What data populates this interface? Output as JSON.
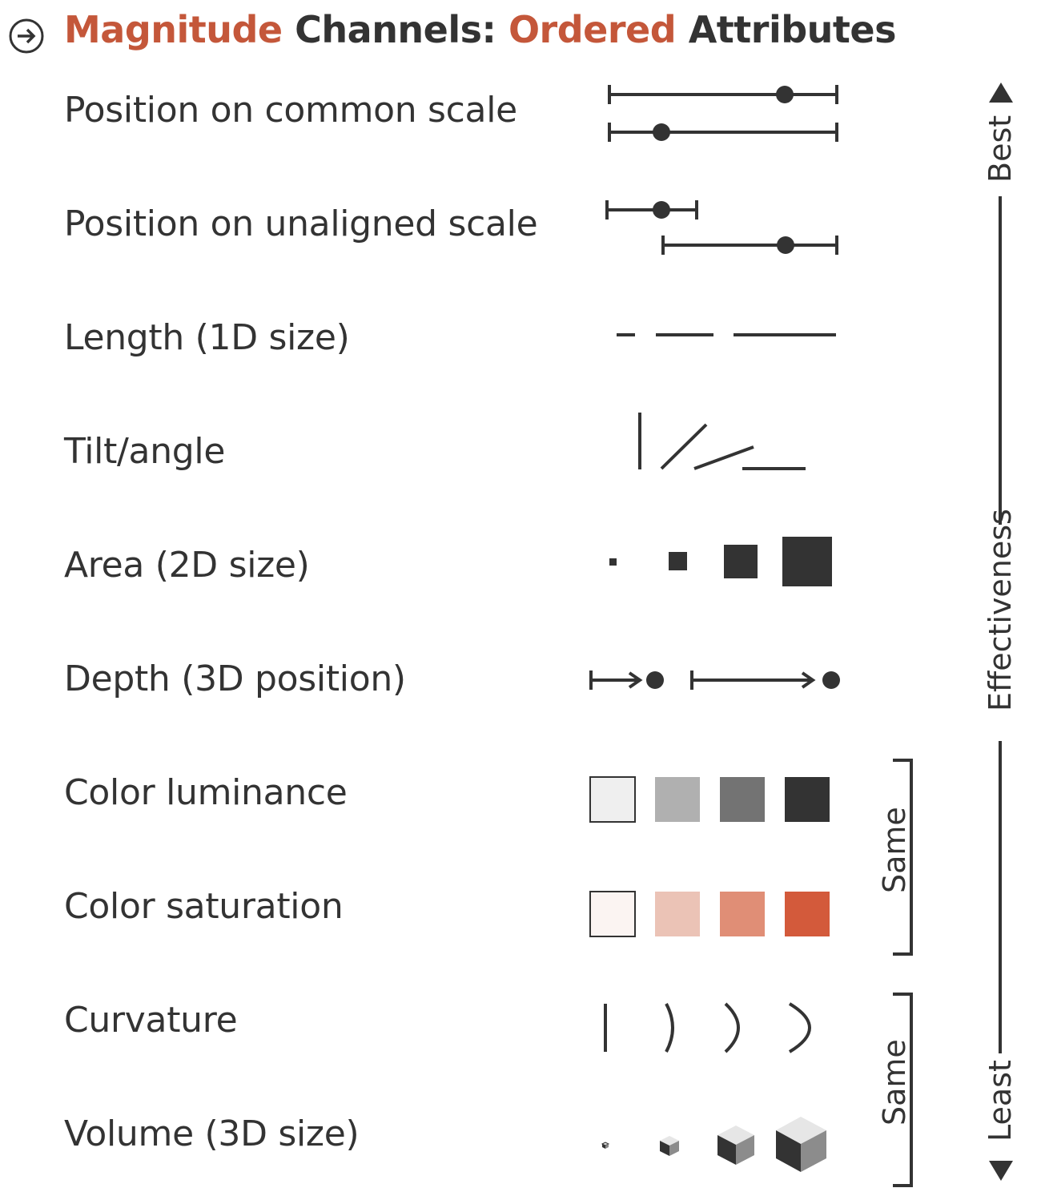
{
  "title": {
    "part1": "Magnitude",
    "part2": " Channels: ",
    "part3": "Ordered",
    "part4": " Attributes",
    "accent_color": "#c4573a",
    "icon": "arrow-right-circle-icon"
  },
  "channels": [
    "Position on common scale",
    "Position on unaligned scale",
    "Length (1D size)",
    "Tilt/angle",
    "Area (2D size)",
    "Depth (3D position)",
    "Color luminance",
    "Color saturation",
    "Curvature",
    "Volume (3D size)"
  ],
  "luminance_colors": [
    "#efefef",
    "#b0b0b0",
    "#737373",
    "#333333"
  ],
  "saturation_colors": [
    "#fbf4f2",
    "#ebc3b6",
    "#e08e76",
    "#d35a3b"
  ],
  "effectiveness": {
    "best": "Best",
    "axis": "Effectiveness",
    "least": "Least",
    "same_1": "Same",
    "same_2": "Same"
  }
}
